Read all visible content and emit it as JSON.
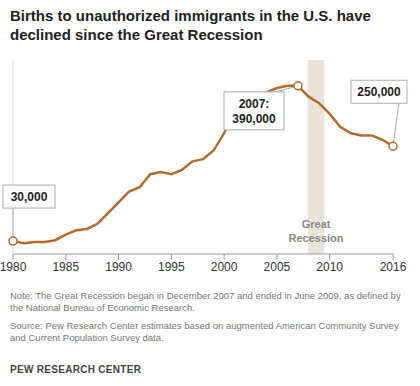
{
  "chart_data": {
    "type": "line",
    "title": "Births to unauthorized immigrants in the U.S. have declined since the Great Recession",
    "notes": [
      "Note: The Great Recession began in December 2007 and ended in June 2009, as defined by the National Bureau of Economic Research.",
      "Source: Pew Research Center estimates based on augmented American Community Survey and Current Population Survey data."
    ],
    "credit": "PEW RESEARCH CENTER",
    "x": [
      1980,
      1981,
      1982,
      1983,
      1984,
      1985,
      1986,
      1987,
      1988,
      1989,
      1990,
      1991,
      1992,
      1993,
      1994,
      1995,
      1996,
      1997,
      1998,
      1999,
      2000,
      2001,
      2002,
      2003,
      2004,
      2005,
      2006,
      2007,
      2008,
      2009,
      2010,
      2011,
      2012,
      2013,
      2014,
      2015,
      2016
    ],
    "values": [
      30000,
      25000,
      28000,
      28000,
      32000,
      45000,
      55000,
      58000,
      70000,
      95000,
      120000,
      145000,
      155000,
      185000,
      190000,
      185000,
      195000,
      215000,
      220000,
      240000,
      280000,
      340000,
      355000,
      360000,
      375000,
      385000,
      390000,
      390000,
      365000,
      350000,
      325000,
      295000,
      280000,
      275000,
      275000,
      265000,
      250000
    ],
    "color": "#b5692a",
    "xlim": [
      1980,
      2016
    ],
    "xticks": [
      1980,
      1985,
      1990,
      1995,
      2000,
      2005,
      2010,
      2016
    ],
    "ylim": [
      0,
      450000
    ],
    "yticks": [],
    "tick_labels": "x",
    "grid": false,
    "marker": "none",
    "annotations": [
      {
        "x": 1980,
        "value": 30000,
        "lines": [
          "30,000"
        ]
      },
      {
        "x": 2007,
        "value": 390000,
        "lines": [
          "2007:",
          "390,000"
        ]
      },
      {
        "x": 2016,
        "value": 250000,
        "lines": [
          "250,000"
        ]
      }
    ],
    "shaded_regions": [
      {
        "x_start": 2007.92,
        "x_end": 2009.5,
        "label": "Great Recession",
        "color": "#e8e4d8"
      }
    ]
  }
}
